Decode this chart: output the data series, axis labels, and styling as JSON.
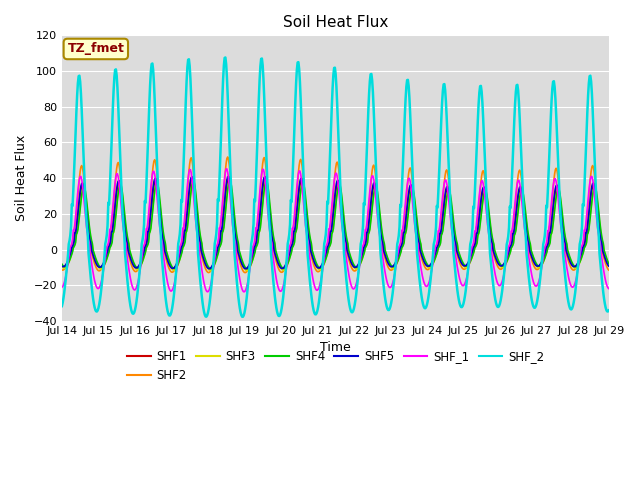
{
  "title": "Soil Heat Flux",
  "xlabel": "Time",
  "ylabel": "Soil Heat Flux",
  "ylim": [
    -40,
    120
  ],
  "background_color": "#dcdcdc",
  "xtick_labels": [
    "Jul 14",
    "Jul 15",
    "Jul 16",
    "Jul 17",
    "Jul 18",
    "Jul 19",
    "Jul 20",
    "Jul 21",
    "Jul 22",
    "Jul 23",
    "Jul 24",
    "Jul 25",
    "Jul 26",
    "Jul 27",
    "Jul 28",
    "Jul 29"
  ],
  "yticks": [
    -40,
    -20,
    0,
    20,
    40,
    60,
    80,
    100,
    120
  ],
  "series": [
    {
      "name": "SHF1",
      "color": "#cc0000",
      "lw": 1.2,
      "amp": 38,
      "night": -10,
      "phase": 0.0
    },
    {
      "name": "SHF2",
      "color": "#ff8800",
      "lw": 1.2,
      "amp": 48,
      "night": -12,
      "phase": 0.03
    },
    {
      "name": "SHF3",
      "color": "#dddd00",
      "lw": 1.2,
      "amp": 35,
      "night": -11,
      "phase": -0.02
    },
    {
      "name": "SHF4",
      "color": "#00cc00",
      "lw": 1.2,
      "amp": 36,
      "night": -10,
      "phase": -0.03
    },
    {
      "name": "SHF5",
      "color": "#0000cc",
      "lw": 1.2,
      "amp": 38,
      "night": -10,
      "phase": 0.015
    },
    {
      "name": "SHF_1",
      "color": "#ff00ff",
      "lw": 1.2,
      "amp": 42,
      "night": -22,
      "phase": 0.06
    },
    {
      "name": "SHF_2",
      "color": "#00dddd",
      "lw": 1.8,
      "amp": 100,
      "night": -35,
      "phase": 0.1
    }
  ],
  "annotation_text": "TZ_fmet",
  "annotation_color": "#8b0000",
  "annotation_bg": "#ffffcc",
  "annotation_border": "#aa8800",
  "legend_ncol": 6,
  "days": 15
}
